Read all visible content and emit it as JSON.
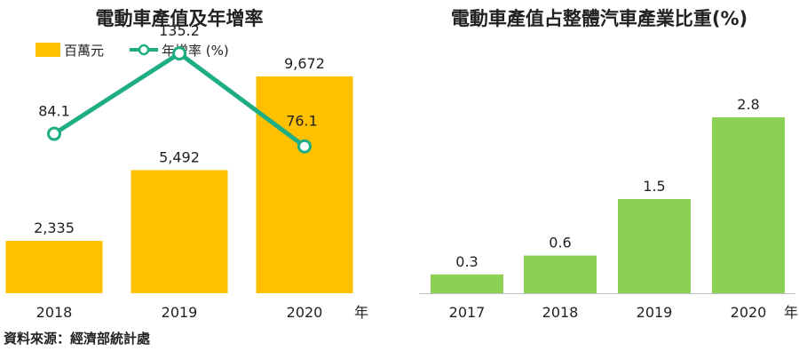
{
  "chart_data": [
    {
      "type": "bar+line",
      "title": "電動車產值及年增率",
      "categories": [
        "2018",
        "2019",
        "2020"
      ],
      "x_unit": "年",
      "bar_series": {
        "name": "百萬元",
        "values": [
          2335,
          5492,
          9672
        ],
        "labels": [
          "2,335",
          "5,492",
          "9,672"
        ],
        "color": "#FFC000"
      },
      "line_series": {
        "name": "年增率 (%)",
        "values": [
          84.1,
          135.2,
          76.1
        ],
        "labels": [
          "84.1",
          "135.2",
          "76.1"
        ],
        "color": "#1FAE84"
      },
      "legend": "top-left"
    },
    {
      "type": "bar",
      "title": "電動車產值占整體汽車產業比重(%)",
      "categories": [
        "2017",
        "2018",
        "2019",
        "2020"
      ],
      "x_unit": "年",
      "values": [
        0.3,
        0.6,
        1.5,
        2.8
      ],
      "labels": [
        "0.3",
        "0.6",
        "1.5",
        "2.8"
      ],
      "color": "#8CD153"
    }
  ],
  "source": "資料來源：經濟部統計處"
}
